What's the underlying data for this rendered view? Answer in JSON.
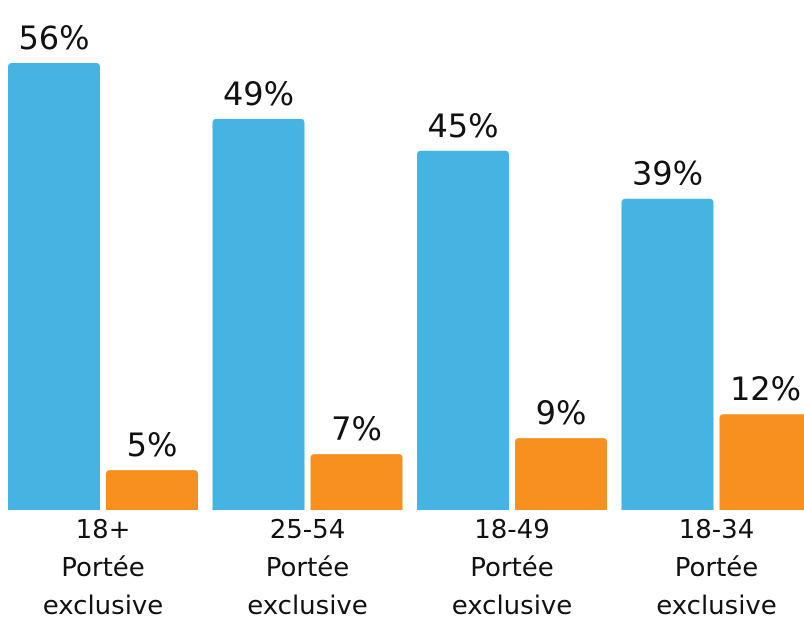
{
  "chart_data": {
    "type": "bar",
    "categories": [
      [
        "18+",
        "Portée",
        "exclusive"
      ],
      [
        "25-54",
        "Portée",
        "exclusive"
      ],
      [
        "18-49",
        "Portée",
        "exclusive"
      ],
      [
        "18-34",
        "Portée",
        "exclusive"
      ]
    ],
    "series": [
      {
        "color": "#45b4e2",
        "values": [
          56,
          49,
          45,
          39
        ],
        "value_labels": [
          "56%",
          "49%",
          "45%",
          "39%"
        ]
      },
      {
        "color": "#f7901e",
        "values": [
          5,
          7,
          9,
          12
        ],
        "value_labels": [
          "5%",
          "7%",
          "9%",
          "12%"
        ]
      }
    ]
  }
}
